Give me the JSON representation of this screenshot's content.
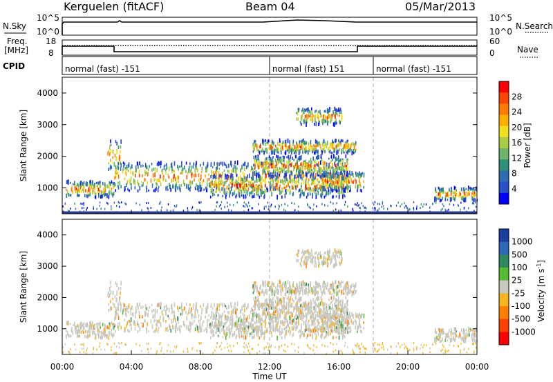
{
  "header": {
    "station": "Kerguelen (fitACF)",
    "beam": "Beam 04",
    "date": "05/Mar/2013"
  },
  "top_panels": {
    "nsky_label": "N.Sky",
    "nsky_ticks": [
      "10^5",
      "10^0"
    ],
    "nsearch_label": "N.Search",
    "nsearch_ticks": [
      "10^5",
      "10^0"
    ],
    "freq_label_1": "Freq.",
    "freq_label_2": "[MHz]",
    "freq_ticks": [
      "18",
      "8"
    ],
    "nave_label": "Nave",
    "nave_ticks": [
      "60",
      "0"
    ],
    "cpid_label": "CPID"
  },
  "cpid_segments": [
    {
      "label": "normal (fast) -151",
      "start_hour": 0,
      "end_hour": 12
    },
    {
      "label": "normal (fast) 151",
      "start_hour": 12,
      "end_hour": 18
    },
    {
      "label": "normal (fast) -151",
      "start_hour": 18,
      "end_hour": 24
    }
  ],
  "axes": {
    "ylabel": "Slant Range [km]",
    "y_ticks": [
      "4000",
      "3000",
      "2000",
      "1000"
    ],
    "x_ticks": [
      "00:00",
      "04:00",
      "08:00",
      "12:00",
      "16:00",
      "20:00",
      "00:00"
    ],
    "xlabel": "Time UT"
  },
  "power_scale": {
    "label": "Power [dB]",
    "ticks": [
      "28",
      "24",
      "20",
      "16",
      "12",
      "8",
      "4"
    ],
    "colors": [
      "#0000ff",
      "#2a50c8",
      "#2f6bb0",
      "#2f8f78",
      "#6bb46a",
      "#aacc44",
      "#f0e020",
      "#ffb000",
      "#ff7a00",
      "#ff4400",
      "#ff0000"
    ]
  },
  "velocity_scale": {
    "label": "Velocity [m s",
    "label_exp": "-1",
    "label_end": "]",
    "ticks": [
      "1000",
      "500",
      "100",
      "25",
      "-25",
      "-100",
      "-500",
      "-1000"
    ],
    "colors": [
      "#1b3fa0",
      "#2e66b8",
      "#2e8a5e",
      "#55bb33",
      "#c8c8c0",
      "#f6b520",
      "#ff8000",
      "#ff4000",
      "#ff0000"
    ]
  },
  "chart_data": {
    "type": "heatmap",
    "x_range_hours": [
      0,
      24
    ],
    "y_range_km": [
      180,
      4500
    ],
    "panels": [
      "power",
      "velocity"
    ],
    "vertical_markers_hours": [
      12,
      18
    ],
    "echo_bands": [
      {
        "t0": 0.2,
        "t1": 3.0,
        "r0": 700,
        "r1": 1200
      },
      {
        "t0": 2.6,
        "t1": 3.4,
        "r0": 1500,
        "r1": 2500
      },
      {
        "t0": 3.0,
        "t1": 16.5,
        "r0": 900,
        "r1": 1800
      },
      {
        "t0": 8.5,
        "t1": 16.5,
        "r0": 700,
        "r1": 1400
      },
      {
        "t0": 11.0,
        "t1": 16.5,
        "r0": 1400,
        "r1": 2000
      },
      {
        "t0": 11.0,
        "t1": 17.0,
        "r0": 2100,
        "r1": 2500
      },
      {
        "t0": 15.0,
        "t1": 17.5,
        "r0": 900,
        "r1": 1500
      },
      {
        "t0": 13.5,
        "t1": 16.2,
        "r0": 3000,
        "r1": 3500
      },
      {
        "t0": 21.5,
        "t1": 24.0,
        "r0": 600,
        "r1": 1000
      }
    ]
  }
}
